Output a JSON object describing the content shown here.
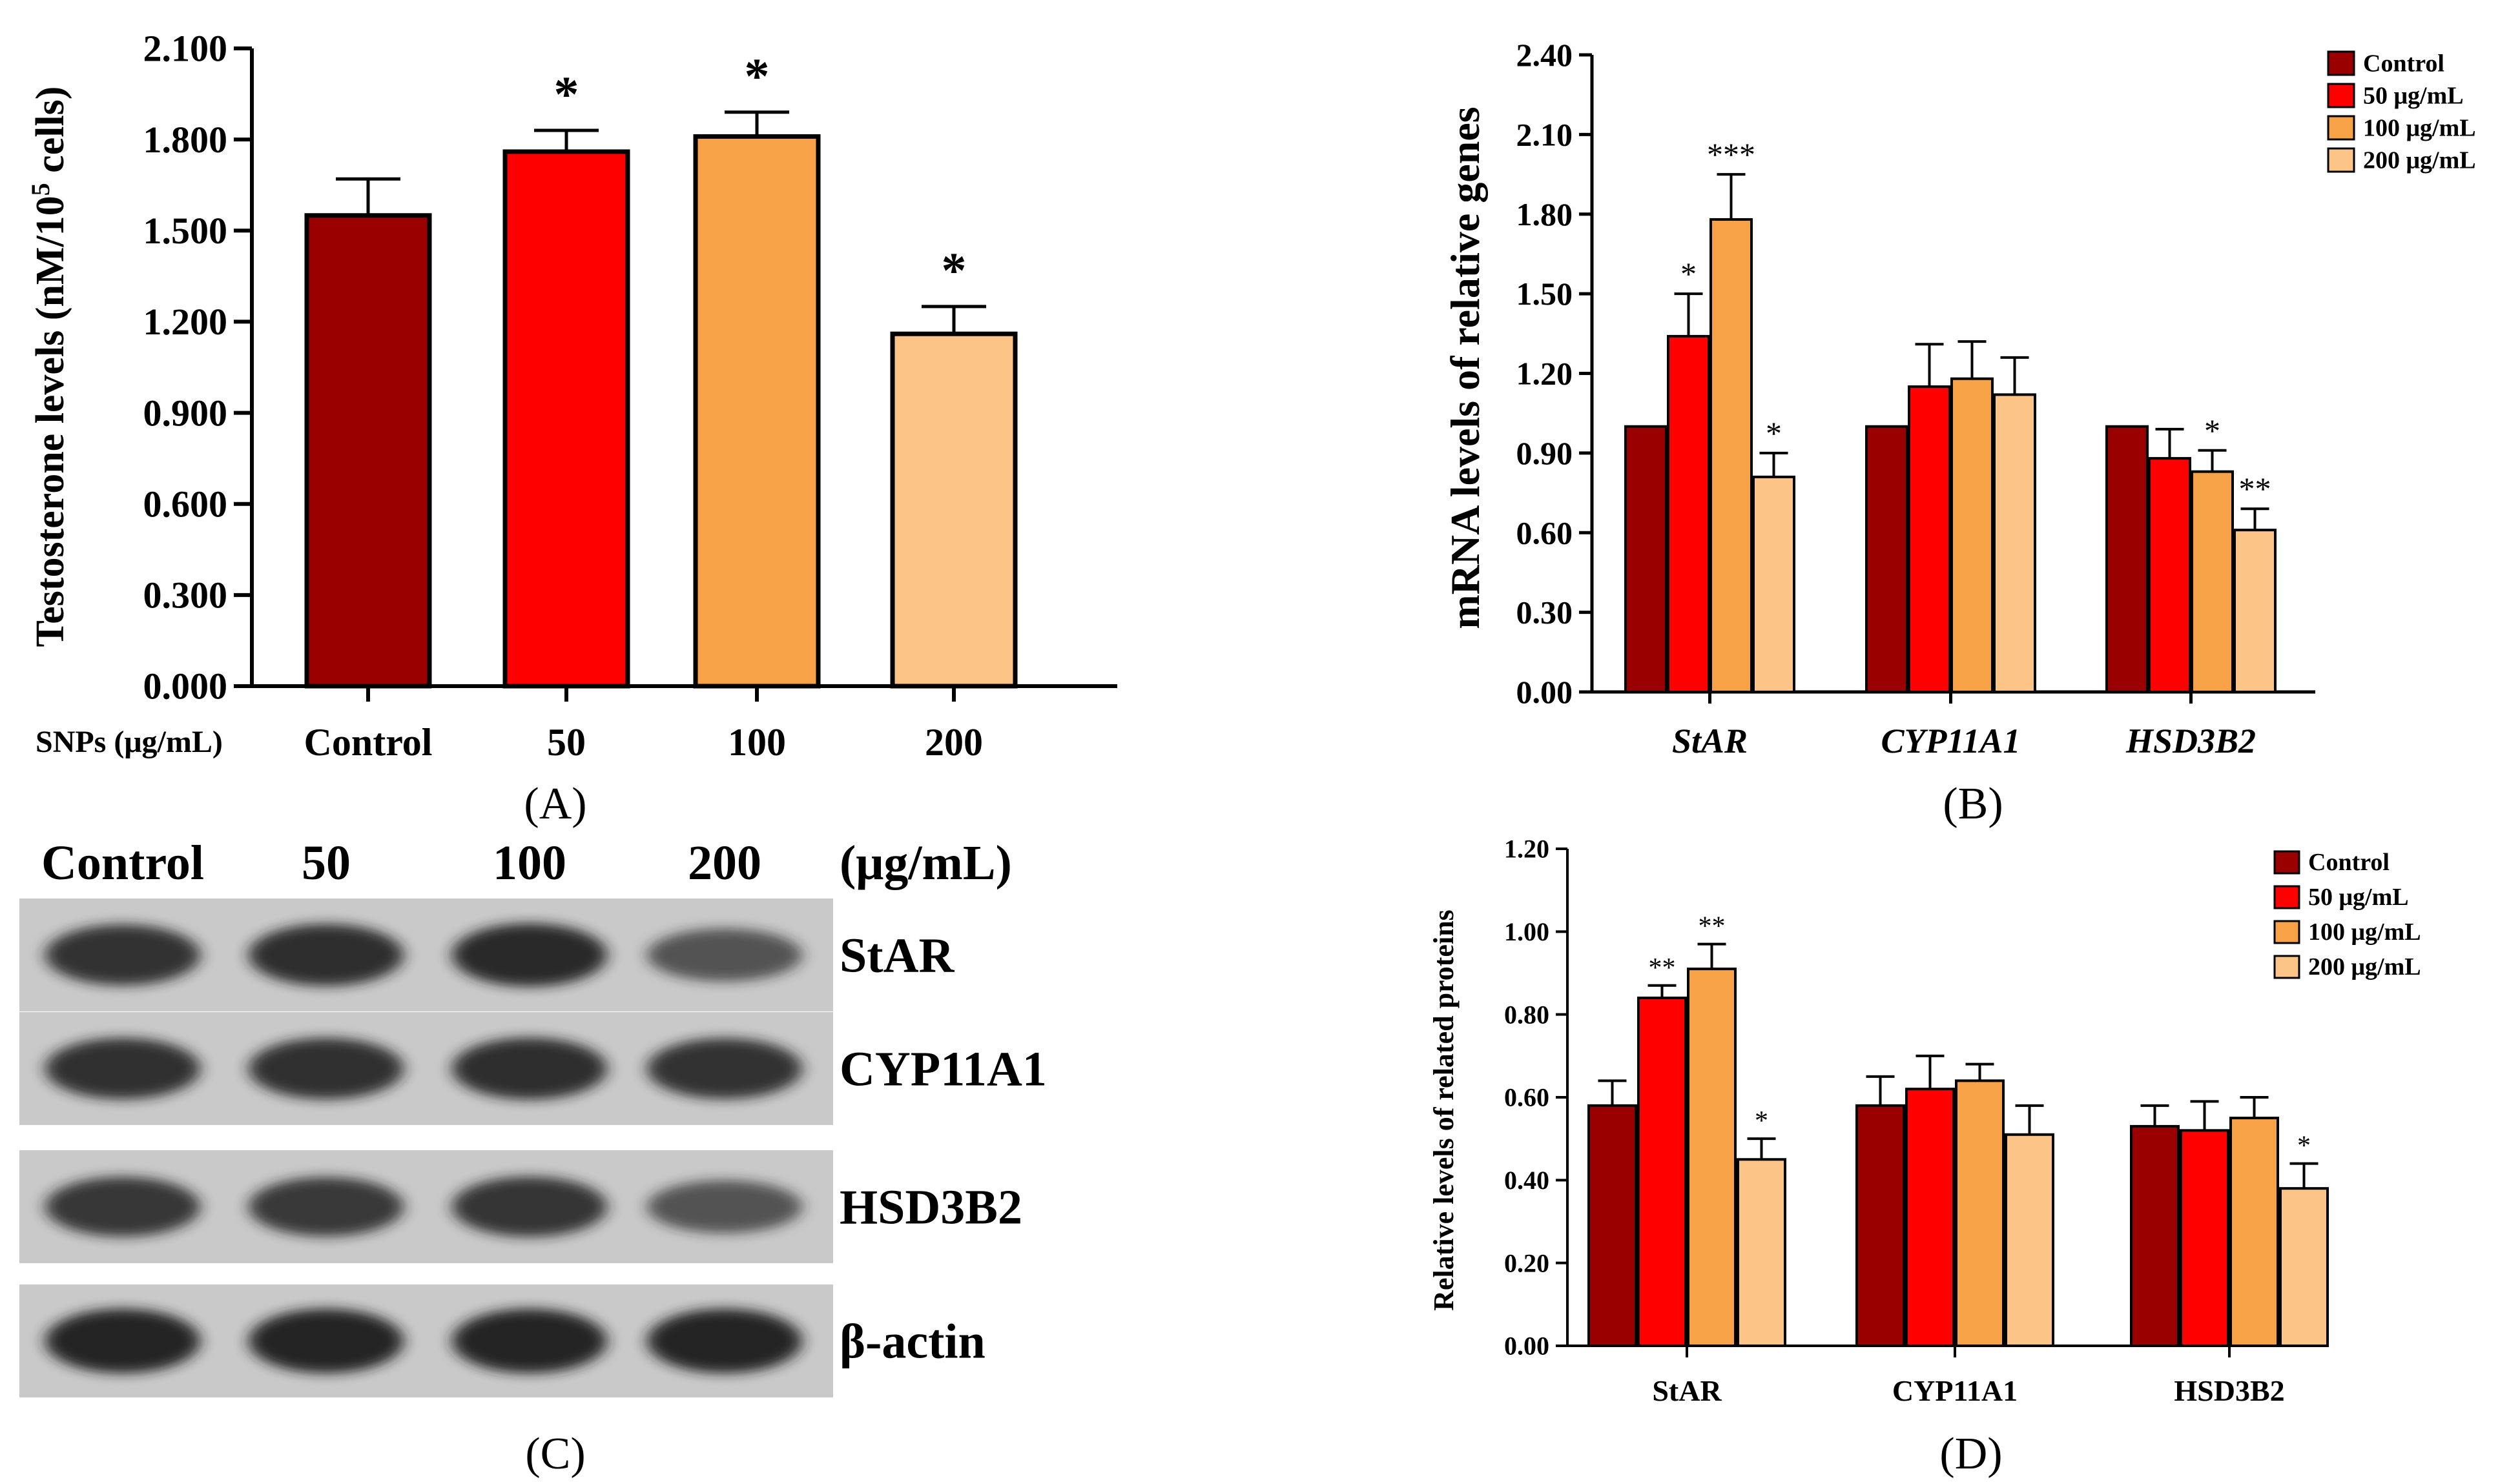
{
  "colors": {
    "control": "#9B0000",
    "c50": "#FF0000",
    "c100": "#F7A246",
    "c200": "#FCC486",
    "ink": "#000000",
    "blot_bg": "#c9c9c9",
    "band": "#1a1a1a"
  },
  "chart_data": [
    {
      "panel": "A",
      "type": "bar",
      "panel_label": "(A)",
      "title": "",
      "xlabel": "SNPs (μg/mL)",
      "ylabel_main": "Testosterone levels (nM/10",
      "ylabel_sup": "5",
      "ylabel_tail": " cells)",
      "ylim": [
        0,
        2.1
      ],
      "yticks": [
        "0.000",
        "0.300",
        "0.600",
        "0.900",
        "1.200",
        "1.500",
        "1.800",
        "2.100"
      ],
      "categories": [
        "Control",
        "50",
        "100",
        "200"
      ],
      "values": [
        1.55,
        1.76,
        1.81,
        1.16
      ],
      "errors": [
        0.12,
        0.07,
        0.08,
        0.09
      ],
      "significance": [
        "",
        "*",
        "*",
        "*"
      ]
    },
    {
      "panel": "B",
      "type": "bar",
      "panel_label": "(B)",
      "title": "",
      "ylabel": "mRNA levels of relative genes",
      "ylim": [
        0,
        2.4
      ],
      "yticks": [
        "0.00",
        "0.30",
        "0.60",
        "0.90",
        "1.20",
        "1.50",
        "1.80",
        "2.10",
        "2.40"
      ],
      "categories": [
        "StAR",
        "CYP11A1",
        "HSD3B2"
      ],
      "category_style": "italic",
      "legend": [
        "Control",
        "50 μg/mL",
        "100 μg/mL",
        "200 μg/mL"
      ],
      "series": [
        {
          "name": "Control",
          "values": [
            1.0,
            1.0,
            1.0
          ],
          "errors": [
            0,
            0,
            0
          ],
          "significance": [
            "",
            "",
            ""
          ]
        },
        {
          "name": "50 μg/mL",
          "values": [
            1.34,
            1.15,
            0.88
          ],
          "errors": [
            0.16,
            0.16,
            0.11
          ],
          "significance": [
            "*",
            "",
            ""
          ]
        },
        {
          "name": "100 μg/mL",
          "values": [
            1.78,
            1.18,
            0.83
          ],
          "errors": [
            0.17,
            0.14,
            0.08
          ],
          "significance": [
            "***",
            "",
            "*"
          ]
        },
        {
          "name": "200 μg/mL",
          "values": [
            0.81,
            1.12,
            0.61
          ],
          "errors": [
            0.09,
            0.14,
            0.08
          ],
          "significance": [
            "*",
            "",
            "**"
          ]
        }
      ]
    },
    {
      "panel": "D",
      "type": "bar",
      "panel_label": "(D)",
      "title": "",
      "ylabel": "Relative levels of related proteins",
      "ylim": [
        0,
        1.2
      ],
      "yticks": [
        "0.00",
        "0.20",
        "0.40",
        "0.60",
        "0.80",
        "1.00",
        "1.20"
      ],
      "categories": [
        "StAR",
        "CYP11A1",
        "HSD3B2"
      ],
      "category_style": "normal",
      "legend": [
        "Control",
        "50 μg/mL",
        "100 μg/mL",
        "200 μg/mL"
      ],
      "series": [
        {
          "name": "Control",
          "values": [
            0.58,
            0.58,
            0.53
          ],
          "errors": [
            0.06,
            0.07,
            0.05
          ],
          "significance": [
            "",
            "",
            ""
          ]
        },
        {
          "name": "50 μg/mL",
          "values": [
            0.84,
            0.62,
            0.52
          ],
          "errors": [
            0.03,
            0.08,
            0.07
          ],
          "significance": [
            "**",
            "",
            ""
          ]
        },
        {
          "name": "100 μg/mL",
          "values": [
            0.91,
            0.64,
            0.55
          ],
          "errors": [
            0.06,
            0.04,
            0.05
          ],
          "significance": [
            "**",
            "",
            ""
          ]
        },
        {
          "name": "200 μg/mL",
          "values": [
            0.45,
            0.51,
            0.38
          ],
          "errors": [
            0.05,
            0.07,
            0.06
          ],
          "significance": [
            "*",
            "",
            "*"
          ]
        }
      ]
    }
  ],
  "blot": {
    "panel_label": "(C)",
    "lane_headers": [
      "Control",
      "50",
      "100",
      "200"
    ],
    "unit": "(μg/mL)",
    "rows": [
      {
        "label": "StAR",
        "intensities": [
          0.86,
          0.9,
          0.95,
          0.55
        ]
      },
      {
        "label": "CYP11A1",
        "intensities": [
          0.88,
          0.88,
          0.9,
          0.86
        ]
      },
      {
        "label": "HSD3B2",
        "intensities": [
          0.82,
          0.8,
          0.84,
          0.55
        ]
      },
      {
        "label": "β-actin",
        "intensities": [
          1.0,
          1.0,
          1.0,
          1.0
        ]
      }
    ]
  }
}
